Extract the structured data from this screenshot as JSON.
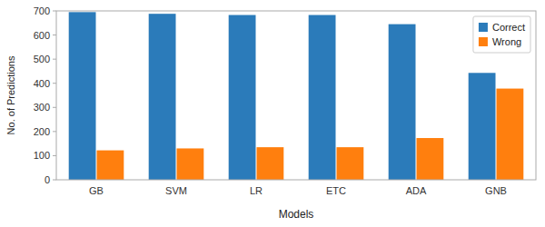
{
  "chart_data": {
    "type": "bar",
    "categories": [
      "GB",
      "SVM",
      "LR",
      "ETC",
      "ADA",
      "GNB"
    ],
    "series": [
      {
        "name": "Correct",
        "color": "#2b7bba",
        "values": [
          695,
          688,
          683,
          683,
          645,
          443
        ]
      },
      {
        "name": "Wrong",
        "color": "#ff7f0e",
        "values": [
          122,
          130,
          135,
          135,
          173,
          378
        ]
      }
    ],
    "xlabel": "Models",
    "ylabel": "No. of Predictions",
    "ylim": [
      0,
      700
    ],
    "yticks": [
      0,
      100,
      200,
      300,
      400,
      500,
      600,
      700
    ],
    "grid": false,
    "legend": "upper right"
  }
}
